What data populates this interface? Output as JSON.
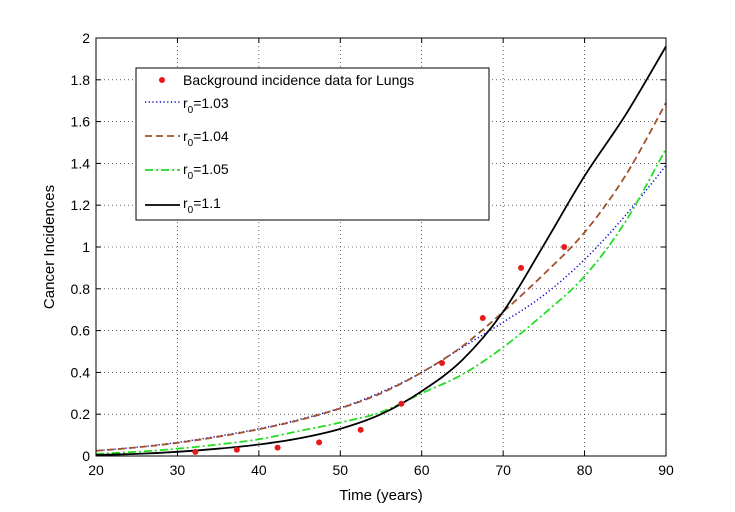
{
  "chart_data": {
    "type": "line",
    "title": "",
    "xlabel": "Time (years)",
    "ylabel": "Cancer Incidences",
    "xlim": [
      20,
      90
    ],
    "ylim": [
      0,
      2
    ],
    "xticks": [
      20,
      30,
      40,
      50,
      60,
      70,
      80,
      90
    ],
    "yticks": [
      0,
      0.2,
      0.4,
      0.6,
      0.8,
      1,
      1.2,
      1.4,
      1.6,
      1.8,
      2
    ],
    "ytick_labels": [
      "0",
      "0.2",
      "0.4",
      "0.6",
      "0.8",
      "1",
      "1.2",
      "1.4",
      "1.6",
      "1.8",
      "2"
    ],
    "grid": true,
    "legend_position": "top-left",
    "scatter": {
      "name": "Background incidence data for Lungs",
      "color": "#e8191b",
      "x": [
        32.2,
        37.3,
        42.3,
        47.4,
        52.5,
        57.5,
        62.5,
        67.5,
        72.2,
        77.5
      ],
      "y": [
        0.02,
        0.03,
        0.04,
        0.065,
        0.125,
        0.25,
        0.445,
        0.66,
        0.9,
        1.0
      ]
    },
    "series": [
      {
        "name": "r",
        "subscript": "0",
        "suffix": "=1.03",
        "color": "#0000cc",
        "style": "dotted",
        "x": [
          20,
          25,
          30,
          35,
          40,
          45,
          50,
          55,
          60,
          65,
          70,
          75,
          80,
          85,
          90
        ],
        "values": [
          0.025,
          0.042,
          0.065,
          0.095,
          0.13,
          0.175,
          0.23,
          0.305,
          0.4,
          0.52,
          0.64,
          0.77,
          0.94,
          1.15,
          1.39
        ]
      },
      {
        "name": "r",
        "subscript": "0",
        "suffix": "=1.04",
        "color": "#a0522d",
        "style": "dashed",
        "x": [
          20,
          25,
          30,
          35,
          40,
          45,
          50,
          55,
          60,
          65,
          70,
          75,
          80,
          85,
          90
        ],
        "values": [
          0.025,
          0.041,
          0.063,
          0.092,
          0.128,
          0.172,
          0.228,
          0.3,
          0.4,
          0.525,
          0.69,
          0.87,
          1.07,
          1.34,
          1.69
        ]
      },
      {
        "name": "r",
        "subscript": "0",
        "suffix": "=1.05",
        "color": "#22dd22",
        "style": "dashdot",
        "x": [
          20,
          25,
          30,
          35,
          40,
          45,
          50,
          55,
          60,
          65,
          70,
          75,
          80,
          85,
          90
        ],
        "values": [
          0.01,
          0.02,
          0.035,
          0.055,
          0.08,
          0.12,
          0.16,
          0.21,
          0.3,
          0.39,
          0.52,
          0.68,
          0.86,
          1.12,
          1.47
        ]
      },
      {
        "name": "r",
        "subscript": "0",
        "suffix": "=1.1",
        "color": "#000000",
        "style": "solid",
        "x": [
          20,
          25,
          30,
          35,
          40,
          45,
          50,
          55,
          60,
          65,
          70,
          75,
          80,
          85,
          90
        ],
        "values": [
          0.005,
          0.01,
          0.02,
          0.035,
          0.055,
          0.085,
          0.13,
          0.2,
          0.31,
          0.46,
          0.69,
          1.01,
          1.34,
          1.63,
          1.96
        ]
      }
    ]
  }
}
